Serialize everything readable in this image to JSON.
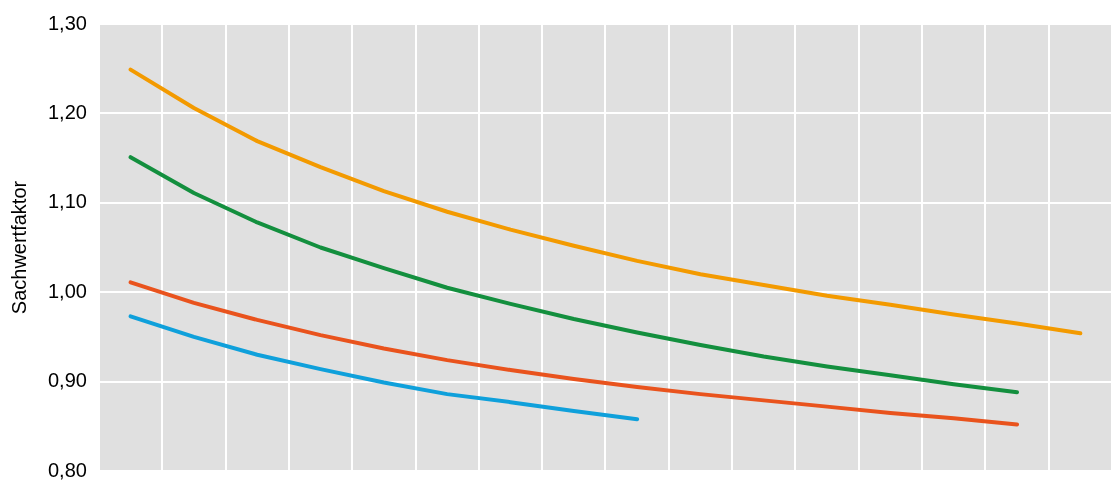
{
  "chart_data": {
    "type": "line",
    "ylabel": "Sachwertfaktor",
    "categories": [
      null,
      null,
      null,
      null,
      null,
      null,
      null,
      null,
      null,
      null,
      null,
      null,
      null,
      null,
      null,
      null
    ],
    "series": [
      {
        "color": "#f39a00",
        "values": [
          1.249,
          1.206,
          1.169,
          1.14,
          1.113,
          1.09,
          1.07,
          1.052,
          1.035,
          1.02,
          1.008,
          0.996,
          0.986,
          0.975,
          0.965,
          0.954
        ]
      },
      {
        "color": "#138f3e",
        "values": [
          1.151,
          1.111,
          1.078,
          1.05,
          1.027,
          1.005,
          0.987,
          0.97,
          0.955,
          0.941,
          0.928,
          0.917,
          0.907,
          0.897,
          0.888,
          null
        ]
      },
      {
        "color": "#e9531d",
        "values": [
          1.011,
          0.988,
          0.969,
          0.952,
          0.937,
          0.924,
          0.913,
          0.903,
          0.894,
          0.886,
          0.879,
          0.872,
          0.865,
          0.859,
          0.852,
          null
        ]
      },
      {
        "color": "#0fa0db",
        "values": [
          0.973,
          0.95,
          0.93,
          0.914,
          0.899,
          0.886,
          0.877,
          0.867,
          0.858,
          null,
          null,
          null,
          null,
          null,
          null,
          null
        ]
      }
    ],
    "ylim": [
      0.8,
      1.3
    ],
    "yticks": [
      {
        "value": 0.8,
        "label": "0,80"
      },
      {
        "value": 0.9,
        "label": "0,90"
      },
      {
        "value": 1.0,
        "label": "1,00"
      },
      {
        "value": 1.1,
        "label": "1,10"
      },
      {
        "value": 1.2,
        "label": "1,20"
      },
      {
        "value": 1.3,
        "label": "1,30"
      }
    ],
    "grid": true,
    "legend": false,
    "marker": "none",
    "line_style": "solid",
    "tick_labels": "y"
  }
}
